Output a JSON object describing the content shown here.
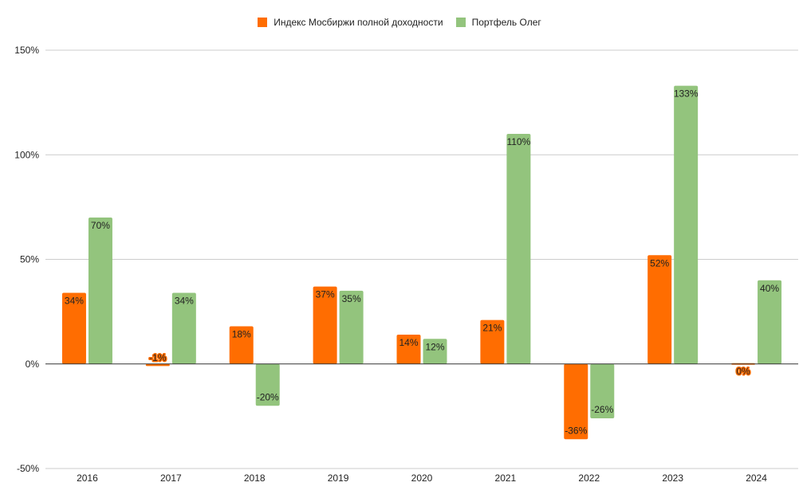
{
  "chart_data": {
    "type": "bar",
    "categories": [
      "2016",
      "2017",
      "2018",
      "2019",
      "2020",
      "2021",
      "2022",
      "2023",
      "2024"
    ],
    "series": [
      {
        "name": "Индекс Мосбиржи полной доходности",
        "color": "#ff6d01",
        "values": [
          34,
          -1,
          18,
          37,
          14,
          21,
          -36,
          52,
          0
        ],
        "labels": [
          "34%",
          "-1%",
          "18%",
          "37%",
          "14%",
          "21%",
          "-36%",
          "52%",
          "0%"
        ]
      },
      {
        "name": "Портфель Олег",
        "color": "#93c47d",
        "values": [
          70,
          34,
          -20,
          35,
          12,
          110,
          -26,
          133,
          40
        ],
        "labels": [
          "70%",
          "34%",
          "-20%",
          "35%",
          "12%",
          "110%",
          "-26%",
          "133%",
          "40%"
        ]
      }
    ],
    "y_ticks": [
      {
        "value": 150,
        "label": "150%"
      },
      {
        "value": 100,
        "label": "100%"
      },
      {
        "value": 50,
        "label": "50%"
      },
      {
        "value": 0,
        "label": "0%"
      },
      {
        "value": -50,
        "label": "-50%"
      }
    ],
    "ylim": [
      -50,
      150
    ],
    "grid": true,
    "legend_position": "top-center",
    "title": "",
    "xlabel": "",
    "ylabel": ""
  }
}
